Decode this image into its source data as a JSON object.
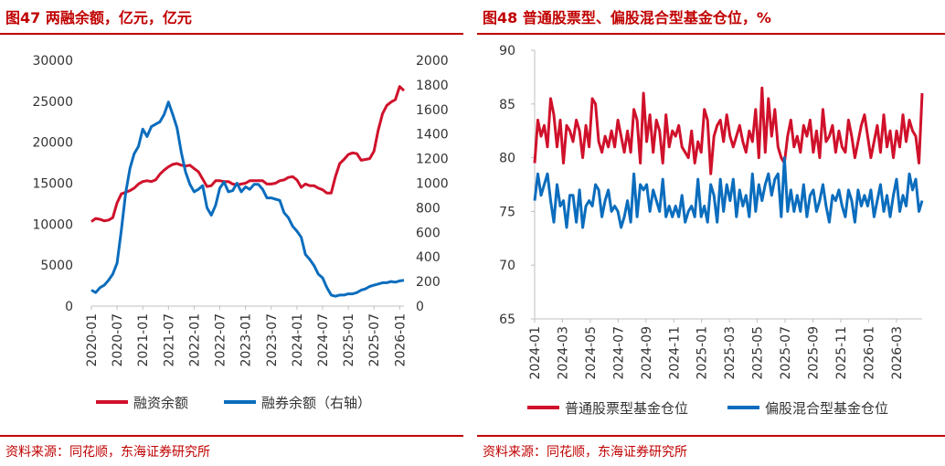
{
  "charts": [
    {
      "figure_title": "图47  两融余额，亿元，亿元",
      "source": "资料来源：同花顺，东海证券研究所",
      "legend": [
        "融资余额",
        "融券余额（右轴）"
      ],
      "colors": [
        "#d0112b",
        "#0b6dbd"
      ]
    },
    {
      "figure_title": "图48  普通股票型、偏股混合型基金仓位，%",
      "source": "资料来源：同花顺，东海证券研究所",
      "legend": [
        "普通股票型基金仓位",
        "偏股混合型基金仓位"
      ],
      "colors": [
        "#d0112b",
        "#0b6dbd"
      ]
    }
  ],
  "chart_data": [
    {
      "type": "line",
      "title": "两融余额，亿元，亿元",
      "x_ticks": [
        "2020-01",
        "2020-07",
        "2021-01",
        "2021-07",
        "2022-01",
        "2022-07",
        "2023-01",
        "2023-07",
        "2024-01",
        "2024-07",
        "2025-01",
        "2025-07",
        "2026-01"
      ],
      "ylim_left": [
        0,
        30000
      ],
      "ylim_right": [
        0,
        2000
      ],
      "y_ticks_left": [
        0,
        5000,
        10000,
        15000,
        20000,
        25000,
        30000
      ],
      "y_ticks_right": [
        0,
        200,
        400,
        600,
        800,
        1000,
        1200,
        1400,
        1600,
        1800,
        2000
      ],
      "series": [
        {
          "name": "融资余额",
          "axis": "left",
          "x": [
            "2020-01",
            "2020-02",
            "2020-03",
            "2020-04",
            "2020-05",
            "2020-06",
            "2020-07",
            "2020-08",
            "2020-09",
            "2020-10",
            "2020-11",
            "2020-12",
            "2021-01",
            "2021-02",
            "2021-03",
            "2021-04",
            "2021-05",
            "2021-06",
            "2021-07",
            "2021-08",
            "2021-09",
            "2021-10",
            "2021-11",
            "2021-12",
            "2022-01",
            "2022-02",
            "2022-03",
            "2022-04",
            "2022-05",
            "2022-06",
            "2022-07",
            "2022-08",
            "2022-09",
            "2022-10",
            "2022-11",
            "2022-12",
            "2023-01",
            "2023-02",
            "2023-03",
            "2023-04",
            "2023-05",
            "2023-06",
            "2023-07",
            "2023-08",
            "2023-09",
            "2023-10",
            "2023-11",
            "2023-12",
            "2024-01",
            "2024-02",
            "2024-03",
            "2024-04",
            "2024-05",
            "2024-06",
            "2024-07",
            "2024-08",
            "2024-09",
            "2024-10",
            "2024-11",
            "2024-12",
            "2025-01",
            "2025-02",
            "2025-03",
            "2025-04",
            "2025-05",
            "2025-06",
            "2025-07",
            "2025-08",
            "2025-09",
            "2025-10",
            "2025-11",
            "2025-12",
            "2026-01",
            "2026-02"
          ],
          "values": [
            10300,
            10700,
            10600,
            10400,
            10500,
            10800,
            12600,
            13700,
            13900,
            14100,
            14400,
            14900,
            15200,
            15300,
            15200,
            15400,
            16100,
            16600,
            17000,
            17300,
            17400,
            17200,
            17100,
            17200,
            16800,
            16400,
            15500,
            14600,
            14700,
            15300,
            15300,
            15200,
            15200,
            14900,
            14800,
            14900,
            15000,
            15300,
            15300,
            15300,
            15300,
            14900,
            14900,
            15000,
            15300,
            15400,
            15700,
            15800,
            15400,
            14500,
            14900,
            14700,
            14700,
            14400,
            14200,
            13800,
            13800,
            15800,
            17400,
            17900,
            18500,
            18700,
            18600,
            17800,
            17900,
            18000,
            18900,
            21500,
            23500,
            24500,
            24900,
            25200,
            26800,
            26300
          ]
        },
        {
          "name": "融券余额（右轴）",
          "axis": "right",
          "x": [
            "2020-01",
            "2020-02",
            "2020-03",
            "2020-04",
            "2020-05",
            "2020-06",
            "2020-07",
            "2020-08",
            "2020-09",
            "2020-10",
            "2020-11",
            "2020-12",
            "2021-01",
            "2021-02",
            "2021-03",
            "2021-04",
            "2021-05",
            "2021-06",
            "2021-07",
            "2021-08",
            "2021-09",
            "2021-10",
            "2021-11",
            "2021-12",
            "2022-01",
            "2022-02",
            "2022-03",
            "2022-04",
            "2022-05",
            "2022-06",
            "2022-07",
            "2022-08",
            "2022-09",
            "2022-10",
            "2022-11",
            "2022-12",
            "2023-01",
            "2023-02",
            "2023-03",
            "2023-04",
            "2023-05",
            "2023-06",
            "2023-07",
            "2023-08",
            "2023-09",
            "2023-10",
            "2023-11",
            "2023-12",
            "2024-01",
            "2024-02",
            "2024-03",
            "2024-04",
            "2024-05",
            "2024-06",
            "2024-07",
            "2024-08",
            "2024-09",
            "2024-10",
            "2024-11",
            "2024-12",
            "2025-01",
            "2025-02",
            "2025-03",
            "2025-04",
            "2025-05",
            "2025-06",
            "2025-07",
            "2025-08",
            "2025-09",
            "2025-10",
            "2025-11",
            "2025-12",
            "2026-01",
            "2026-02"
          ],
          "values": [
            130,
            110,
            150,
            170,
            210,
            260,
            350,
            620,
            920,
            1120,
            1240,
            1300,
            1440,
            1380,
            1460,
            1480,
            1500,
            1560,
            1660,
            1560,
            1450,
            1250,
            1090,
            990,
            930,
            950,
            980,
            800,
            740,
            820,
            960,
            1010,
            930,
            940,
            1000,
            930,
            970,
            950,
            990,
            990,
            950,
            880,
            880,
            870,
            860,
            760,
            720,
            650,
            610,
            560,
            420,
            380,
            330,
            260,
            230,
            150,
            90,
            80,
            90,
            90,
            100,
            100,
            110,
            130,
            140,
            160,
            170,
            180,
            190,
            190,
            200,
            195,
            205,
            210
          ]
        }
      ]
    },
    {
      "type": "line",
      "title": "普通股票型、偏股混合型基金仓位，%",
      "x_ticks": [
        "2024-01",
        "2024-03",
        "2024-05",
        "2024-07",
        "2024-09",
        "2024-11",
        "2025-01",
        "2025-03",
        "2025-05",
        "2025-07",
        "2025-09",
        "2025-11",
        "2026-01",
        "2026-03"
      ],
      "ylim": [
        65,
        90
      ],
      "y_ticks": [
        65,
        70,
        75,
        80,
        85,
        90
      ],
      "series": [
        {
          "name": "普通股票型基金仓位",
          "x_start": "2024-01",
          "x_step": "1 week",
          "values": [
            79.5,
            83.5,
            82.0,
            83.0,
            81.0,
            85.5,
            84.0,
            81.0,
            83.5,
            79.5,
            83.0,
            82.5,
            81.5,
            83.5,
            82.5,
            80.0,
            83.0,
            81.0,
            85.5,
            85.0,
            81.5,
            80.5,
            82.0,
            81.0,
            82.5,
            81.0,
            83.5,
            82.0,
            80.5,
            82.5,
            80.5,
            84.5,
            83.5,
            79.5,
            86.0,
            81.5,
            84.0,
            80.5,
            83.5,
            82.5,
            79.5,
            84.0,
            81.0,
            82.5,
            82.0,
            83.0,
            81.0,
            80.5,
            80.0,
            82.5,
            79.5,
            81.5,
            80.5,
            84.5,
            83.5,
            78.5,
            82.0,
            83.0,
            83.5,
            81.5,
            84.0,
            82.0,
            81.0,
            82.0,
            83.0,
            81.5,
            80.5,
            82.5,
            81.5,
            84.5,
            80.0,
            86.5,
            80.5,
            85.5,
            82.0,
            84.5,
            81.0,
            80.0,
            79.5,
            82.0,
            83.5,
            81.0,
            82.0,
            80.5,
            83.0,
            82.0,
            83.5,
            80.5,
            82.5,
            80.0,
            84.5,
            81.5,
            82.0,
            83.0,
            80.5,
            82.5,
            81.0,
            80.5,
            83.5,
            82.0,
            80.0,
            81.5,
            83.0,
            84.0,
            82.0,
            80.0,
            81.5,
            83.0,
            80.5,
            84.0,
            81.0,
            82.5,
            80.0,
            82.5,
            81.0,
            84.0,
            81.5,
            83.5,
            82.5,
            82.0,
            79.5,
            86.0
          ]
        },
        {
          "name": "偏股混合型基金仓位",
          "x_start": "2024-01",
          "x_step": "1 week",
          "values": [
            76.0,
            78.5,
            76.5,
            77.5,
            78.5,
            76.0,
            74.0,
            77.5,
            75.5,
            76.0,
            73.5,
            76.5,
            76.5,
            74.0,
            77.0,
            73.5,
            75.5,
            76.0,
            75.5,
            77.5,
            77.0,
            74.5,
            76.0,
            77.0,
            75.0,
            75.5,
            75.0,
            73.5,
            74.5,
            76.0,
            74.0,
            78.5,
            74.5,
            77.5,
            77.0,
            77.5,
            75.0,
            77.0,
            76.0,
            75.0,
            78.0,
            74.5,
            75.5,
            74.5,
            75.5,
            74.5,
            76.5,
            74.0,
            75.0,
            75.5,
            74.5,
            78.0,
            74.5,
            75.5,
            74.0,
            77.5,
            76.5,
            74.0,
            78.0,
            75.0,
            77.5,
            76.0,
            78.0,
            74.5,
            77.0,
            75.5,
            76.5,
            74.5,
            78.5,
            75.0,
            77.5,
            76.0,
            77.5,
            78.5,
            76.5,
            78.0,
            78.5,
            74.5,
            80.0,
            75.0,
            77.0,
            75.0,
            76.5,
            75.0,
            77.5,
            74.5,
            76.5,
            77.0,
            75.0,
            76.0,
            77.5,
            75.5,
            74.0,
            76.5,
            76.0,
            77.0,
            75.5,
            74.5,
            77.0,
            76.0,
            74.0,
            77.0,
            75.5,
            76.5,
            75.5,
            77.0,
            74.5,
            76.0,
            77.5,
            75.0,
            76.5,
            74.5,
            76.5,
            78.0,
            75.0,
            76.5,
            75.5,
            78.5,
            77.0,
            78.0,
            75.0,
            76.0
          ]
        }
      ]
    }
  ]
}
